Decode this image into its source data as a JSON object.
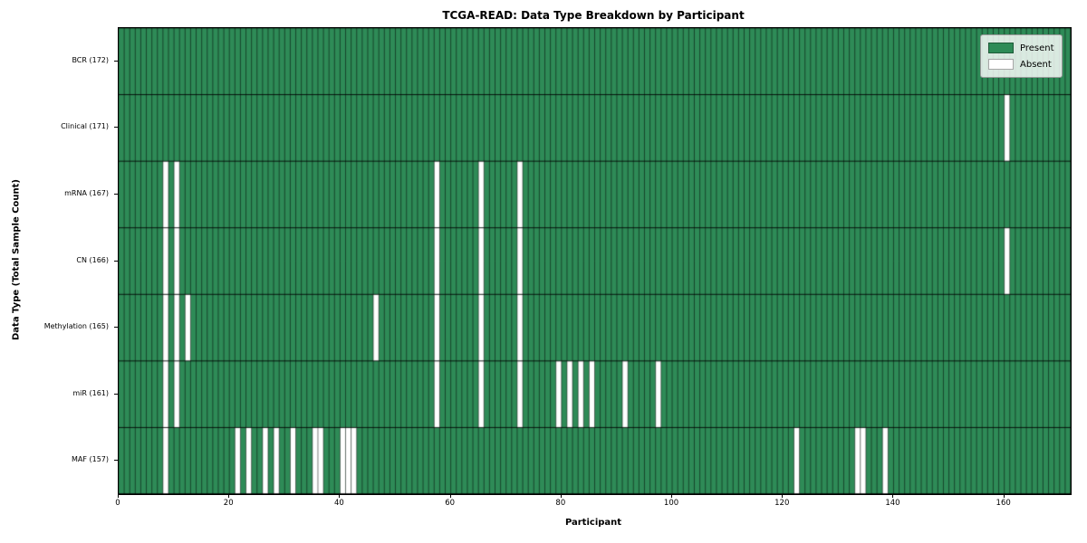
{
  "title": "TCGA-READ: Data Type Breakdown by Participant",
  "colors": {
    "present": "#2e8b57",
    "absent": "#ffffff",
    "cell_edge": "rgba(0,0,0,0.5)",
    "row_divider": "rgba(0,0,0,0.85)",
    "frame": "#000000",
    "legend_border": "#9a9a9a"
  },
  "chart_data": {
    "type": "heatmap",
    "title": "TCGA-READ: Data Type Breakdown by Participant",
    "xlabel": "Participant",
    "ylabel": "Data Type (Total Sample Count)",
    "n_participants": 172,
    "x_ticks": [
      0,
      20,
      40,
      60,
      80,
      100,
      120,
      140,
      160
    ],
    "grid": false,
    "legend_position": "upper right",
    "legend": [
      {
        "label": "Present",
        "color": "#2e8b57"
      },
      {
        "label": "Absent",
        "color": "#ffffff"
      }
    ],
    "value_encoding": {
      "present": 1,
      "absent": 0
    },
    "rows": [
      {
        "label": "BCR (172)",
        "data_type": "BCR",
        "total_sample_count": 172,
        "absent_participants": []
      },
      {
        "label": "Clinical (171)",
        "data_type": "Clinical",
        "total_sample_count": 171,
        "absent_participants": [
          160
        ]
      },
      {
        "label": "mRNA (167)",
        "data_type": "mRNA",
        "total_sample_count": 167,
        "absent_participants": [
          8,
          10,
          57,
          65,
          72
        ]
      },
      {
        "label": "CN (166)",
        "data_type": "CN",
        "total_sample_count": 166,
        "absent_participants": [
          8,
          10,
          57,
          65,
          72,
          160
        ]
      },
      {
        "label": "Methylation (165)",
        "data_type": "Methylation",
        "total_sample_count": 165,
        "absent_participants": [
          8,
          10,
          12,
          46,
          57,
          65,
          72
        ]
      },
      {
        "label": "miR (161)",
        "data_type": "miR",
        "total_sample_count": 161,
        "absent_participants": [
          8,
          10,
          57,
          65,
          72,
          79,
          81,
          83,
          85,
          91,
          97
        ]
      },
      {
        "label": "MAF (157)",
        "data_type": "MAF",
        "total_sample_count": 157,
        "absent_participants": [
          8,
          21,
          23,
          26,
          28,
          31,
          35,
          36,
          40,
          41,
          42,
          122,
          133,
          134,
          138
        ]
      }
    ]
  }
}
